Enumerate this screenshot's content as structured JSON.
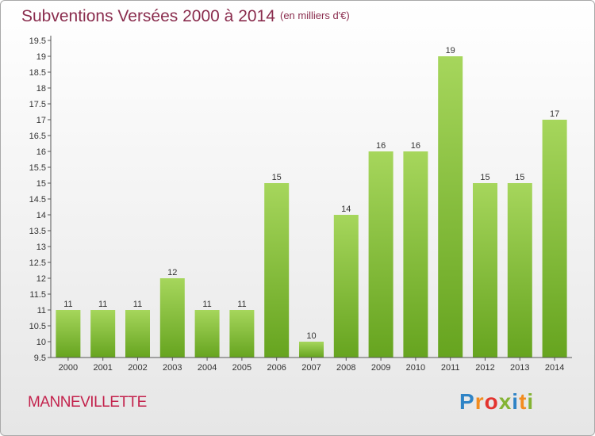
{
  "header": {
    "title": "Subventions Versées 2000 à 2014",
    "unit": "(en milliers d'€)"
  },
  "footer": {
    "commune": "MANNEVILLETTE",
    "brand_letters": [
      "P",
      "r",
      "o",
      "x",
      "i",
      "t",
      "i"
    ],
    "brand_colors": [
      "#2f84c6",
      "#f28c1f",
      "#e3342f",
      "#84b334",
      "#2f84c6",
      "#f28c1f",
      "#84b334"
    ]
  },
  "chart_data": {
    "type": "bar",
    "categories": [
      "2000",
      "2001",
      "2002",
      "2003",
      "2004",
      "2005",
      "2006",
      "2007",
      "2008",
      "2009",
      "2010",
      "2011",
      "2012",
      "2013",
      "2014"
    ],
    "values": [
      11,
      11,
      11,
      12,
      11,
      11,
      15,
      10,
      14,
      16,
      16,
      19,
      15,
      15,
      17
    ],
    "title": "Subventions Versées 2000 à 2014",
    "ylim": [
      9.5,
      19.5
    ],
    "yticks": [
      9.5,
      10,
      10.5,
      11,
      11.5,
      12,
      12.5,
      13,
      13.5,
      14,
      14.5,
      15,
      15.5,
      16,
      16.5,
      17,
      17.5,
      18,
      18.5,
      19,
      19.5
    ],
    "grid": false,
    "bar_color_light": "#a6d65c",
    "bar_color_dark": "#66a41f"
  }
}
